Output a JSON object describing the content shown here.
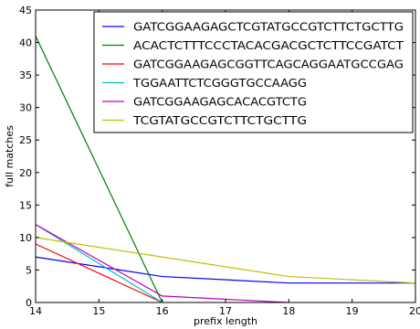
{
  "chart_data": {
    "type": "line",
    "title": "",
    "xlabel": "prefix length",
    "ylabel": "full matches",
    "xlim": [
      14,
      20
    ],
    "ylim": [
      0,
      45
    ],
    "xticks": [
      14,
      15,
      16,
      17,
      18,
      19,
      20
    ],
    "yticks": [
      0,
      5,
      10,
      15,
      20,
      25,
      30,
      35,
      40,
      45
    ],
    "grid": false,
    "legend_position": "top-right",
    "series": [
      {
        "name": "GATCGGAAGAGCTCGTATGCCGTCTTCTGCTTG",
        "color": "#0000ff",
        "points": [
          [
            14,
            7
          ],
          [
            16,
            4
          ],
          [
            18,
            3
          ],
          [
            20,
            3
          ]
        ]
      },
      {
        "name": "ACACTCTTTCCCTACACGACGCTCTTCCGATCT",
        "color": "#008000",
        "points": [
          [
            14,
            41
          ],
          [
            16,
            0
          ]
        ]
      },
      {
        "name": "GATCGGAAGAGCGGTTCAGCAGGAATGCCGAG",
        "color": "#ff0000",
        "points": [
          [
            14,
            9
          ],
          [
            16,
            0
          ]
        ]
      },
      {
        "name": "TGGAATTCTCGGGTGCCAAGG",
        "color": "#00bfbf",
        "points": [
          [
            14,
            12
          ],
          [
            16,
            0
          ]
        ]
      },
      {
        "name": "GATCGGAAGAGCACACGTCTG",
        "color": "#bf00bf",
        "points": [
          [
            14,
            12
          ],
          [
            16,
            1
          ],
          [
            18,
            0
          ]
        ]
      },
      {
        "name": "TCGTATGCCGTCTTCTGCTTG",
        "color": "#bfbf00",
        "points": [
          [
            14,
            10
          ],
          [
            16,
            7
          ],
          [
            18,
            4
          ],
          [
            20,
            3
          ]
        ]
      }
    ]
  }
}
